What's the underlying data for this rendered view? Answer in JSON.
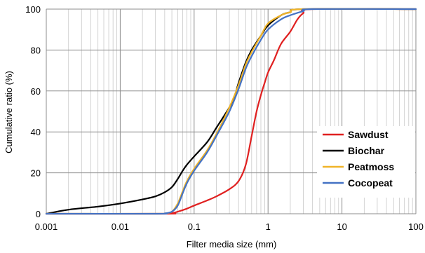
{
  "chart_data": {
    "type": "line",
    "title": "",
    "xlabel": "Filter media size (mm)",
    "ylabel": "Cumulative ratio (%)",
    "x_scale": "log",
    "xlim": [
      0.001,
      100
    ],
    "ylim": [
      0,
      100
    ],
    "x_ticks": [
      "0.001",
      "0.01",
      "0.1",
      "1",
      "10",
      "100"
    ],
    "y_ticks": [
      "0",
      "20",
      "40",
      "60",
      "80",
      "100"
    ],
    "grid": "vertical, log minor",
    "legend_position": "lower-right",
    "series": [
      {
        "name": "Sawdust",
        "color": "#e02020",
        "points": [
          [
            0.001,
            0
          ],
          [
            0.04,
            0
          ],
          [
            0.05,
            0.3
          ],
          [
            0.06,
            1
          ],
          [
            0.08,
            2.5
          ],
          [
            0.1,
            4
          ],
          [
            0.15,
            6.5
          ],
          [
            0.2,
            8.5
          ],
          [
            0.3,
            12
          ],
          [
            0.4,
            16
          ],
          [
            0.5,
            24
          ],
          [
            0.6,
            38
          ],
          [
            0.7,
            50
          ],
          [
            0.8,
            58
          ],
          [
            0.9,
            64
          ],
          [
            1,
            69
          ],
          [
            1.2,
            75
          ],
          [
            1.5,
            83
          ],
          [
            2,
            89
          ],
          [
            2.5,
            95
          ],
          [
            3,
            98
          ],
          [
            4,
            100
          ],
          [
            100,
            100
          ]
        ]
      },
      {
        "name": "Biochar",
        "color": "#000000",
        "points": [
          [
            0.001,
            0
          ],
          [
            0.002,
            2
          ],
          [
            0.005,
            3.5
          ],
          [
            0.01,
            5
          ],
          [
            0.02,
            7
          ],
          [
            0.03,
            8.5
          ],
          [
            0.04,
            10.5
          ],
          [
            0.05,
            13
          ],
          [
            0.06,
            17
          ],
          [
            0.07,
            21
          ],
          [
            0.08,
            24
          ],
          [
            0.1,
            28
          ],
          [
            0.15,
            35
          ],
          [
            0.2,
            42
          ],
          [
            0.3,
            52
          ],
          [
            0.35,
            57
          ],
          [
            0.4,
            64
          ],
          [
            0.5,
            74
          ],
          [
            0.6,
            80
          ],
          [
            0.8,
            87
          ],
          [
            1,
            92
          ],
          [
            1.5,
            97
          ],
          [
            2,
            98.5
          ],
          [
            3,
            100
          ],
          [
            100,
            100
          ]
        ]
      },
      {
        "name": "Peatmoss",
        "color": "#f0b429",
        "points": [
          [
            0.001,
            0
          ],
          [
            0.03,
            0
          ],
          [
            0.04,
            0.2
          ],
          [
            0.05,
            1
          ],
          [
            0.06,
            5
          ],
          [
            0.07,
            11
          ],
          [
            0.08,
            16
          ],
          [
            0.1,
            22
          ],
          [
            0.15,
            31
          ],
          [
            0.2,
            39
          ],
          [
            0.3,
            52
          ],
          [
            0.4,
            63
          ],
          [
            0.5,
            73
          ],
          [
            0.6,
            79
          ],
          [
            0.8,
            87
          ],
          [
            1,
            93
          ],
          [
            1.5,
            97
          ],
          [
            2,
            98.5
          ],
          [
            3,
            100
          ],
          [
            100,
            100
          ]
        ]
      },
      {
        "name": "Cocopeat",
        "color": "#4472c4",
        "points": [
          [
            0.001,
            0
          ],
          [
            0.03,
            0
          ],
          [
            0.04,
            0.2
          ],
          [
            0.05,
            1
          ],
          [
            0.06,
            4
          ],
          [
            0.07,
            10
          ],
          [
            0.08,
            15
          ],
          [
            0.1,
            21
          ],
          [
            0.15,
            30
          ],
          [
            0.2,
            38
          ],
          [
            0.3,
            50
          ],
          [
            0.4,
            61
          ],
          [
            0.5,
            71
          ],
          [
            0.6,
            77
          ],
          [
            0.8,
            85
          ],
          [
            1,
            90
          ],
          [
            1.5,
            95
          ],
          [
            2,
            97
          ],
          [
            3,
            99
          ],
          [
            4,
            100
          ],
          [
            100,
            100
          ]
        ]
      }
    ]
  }
}
